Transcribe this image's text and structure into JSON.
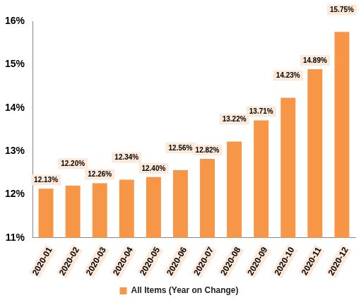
{
  "chart_data": {
    "type": "bar",
    "categories": [
      "2020-01",
      "2020-02",
      "2020-03",
      "2020-04",
      "2020-05",
      "2020-06",
      "2020-07",
      "2020-08",
      "2020-09",
      "2020-10",
      "2020-11",
      "2020-12"
    ],
    "series": [
      {
        "name": "All Items (Year on Change)",
        "color": "#f79646",
        "values": [
          12.13,
          12.2,
          12.26,
          12.34,
          12.4,
          12.56,
          12.82,
          13.22,
          13.71,
          14.23,
          14.89,
          15.75
        ],
        "value_labels": [
          "12.13%",
          "12.20%",
          "12.26%",
          "12.34%",
          "12.40%",
          "12.56%",
          "12.82%",
          "13.22%",
          "13.71%",
          "14.23%",
          "14.89%",
          "15.75%"
        ]
      }
    ],
    "ylim": [
      11,
      16
    ],
    "yticks": [
      {
        "value": 11,
        "label": "11%"
      },
      {
        "value": 12,
        "label": "12%"
      },
      {
        "value": 13,
        "label": "13%"
      },
      {
        "value": 14,
        "label": "14%"
      },
      {
        "value": 15,
        "label": "15%"
      },
      {
        "value": 16,
        "label": "16%"
      }
    ],
    "grid": false,
    "legend": "bottom",
    "data_labels": true
  }
}
